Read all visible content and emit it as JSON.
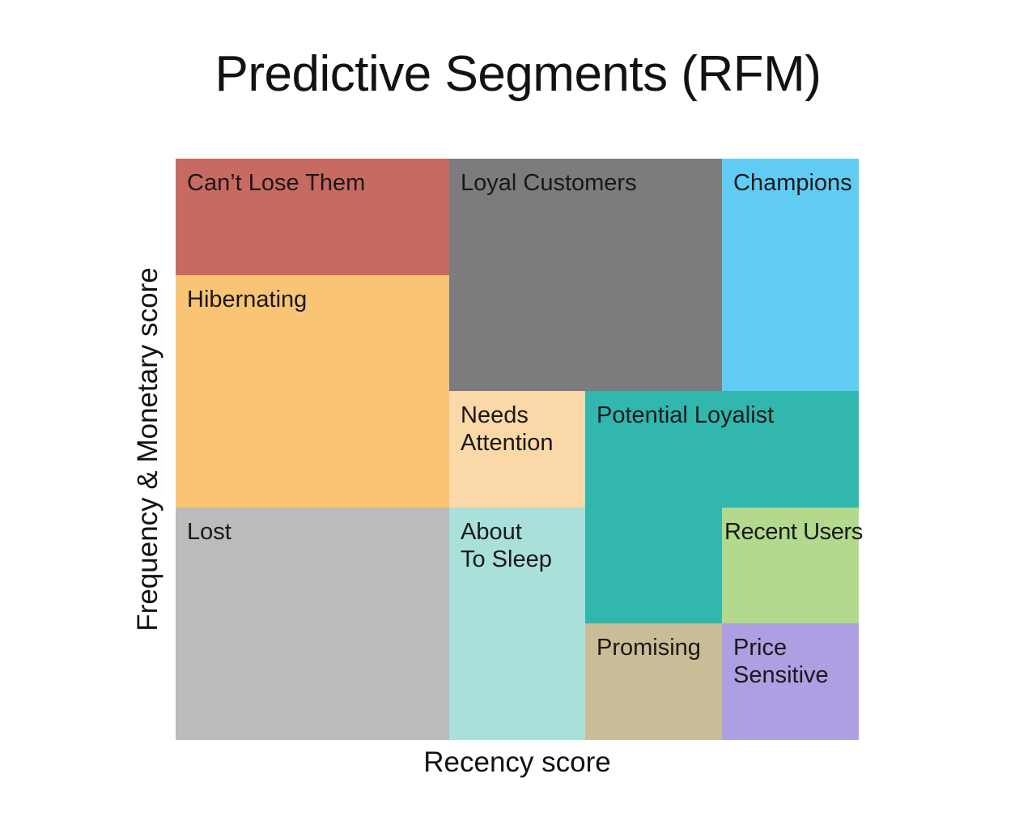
{
  "title": "Predictive Segments (RFM)",
  "x_axis_label": "Recency score",
  "y_axis_label": "Frequency & Monetary score",
  "background_color": "#ffffff",
  "text_color": "#161616",
  "chart_data": {
    "type": "treemap",
    "title": "Predictive Segments (RFM)",
    "xlabel": "Recency score",
    "ylabel": "Frequency & Monetary score",
    "grid": {
      "cols": 5,
      "rows": 5,
      "x_domain": "recency score 1-5, left to right",
      "y_domain": "frequency & monetary score 1-5, bottom to top"
    },
    "legend": "none",
    "segments": [
      {
        "label": "Can’t Lose Them",
        "display_label": "Can’t Lose Them",
        "color": "#C96A62",
        "recency": [
          1,
          2
        ],
        "fm": [
          5,
          5
        ],
        "cells": [
          [
            1,
            5
          ],
          [
            2,
            5
          ]
        ]
      },
      {
        "label": "Loyal Customers",
        "display_label": "Loyal Customers",
        "color": "#7C7C7E",
        "recency": [
          3,
          4
        ],
        "fm": [
          4,
          5
        ],
        "cells": [
          [
            3,
            5
          ],
          [
            4,
            5
          ],
          [
            3,
            4
          ],
          [
            4,
            4
          ]
        ]
      },
      {
        "label": "Champions",
        "display_label": "Champions",
        "color": "#61CCF3",
        "recency": [
          5,
          5
        ],
        "fm": [
          4,
          5
        ],
        "cells": [
          [
            5,
            5
          ],
          [
            5,
            4
          ]
        ]
      },
      {
        "label": "Hibernating",
        "display_label": "Hibernating",
        "color": "#FAC475",
        "recency": [
          1,
          2
        ],
        "fm": [
          3,
          4
        ],
        "cells": [
          [
            1,
            4
          ],
          [
            2,
            4
          ],
          [
            1,
            3
          ],
          [
            2,
            3
          ]
        ]
      },
      {
        "label": "Needs Attention",
        "display_label": "Needs\nAttention",
        "color": "#FBD8A7",
        "recency": [
          3,
          3
        ],
        "fm": [
          3,
          3
        ],
        "cells": [
          [
            3,
            3
          ]
        ]
      },
      {
        "label": "Potential Loyalist",
        "display_label": "Potential Loyalist",
        "color": "#31B7AE",
        "recency": [
          4,
          5
        ],
        "fm": [
          2,
          3
        ],
        "shape": "L",
        "cells": [
          [
            4,
            3
          ],
          [
            5,
            3
          ],
          [
            4,
            2
          ]
        ]
      },
      {
        "label": "Lost",
        "display_label": "Lost",
        "color": "#BBBABD",
        "recency": [
          1,
          2
        ],
        "fm": [
          1,
          2
        ],
        "cells": [
          [
            1,
            2
          ],
          [
            2,
            2
          ],
          [
            1,
            1
          ],
          [
            2,
            1
          ]
        ]
      },
      {
        "label": "About To Sleep",
        "display_label": "About\nTo Sleep",
        "color": "#A9E0DA",
        "recency": [
          3,
          3
        ],
        "fm": [
          1,
          2
        ],
        "cells": [
          [
            3,
            2
          ],
          [
            3,
            1
          ]
        ]
      },
      {
        "label": "Recent Users",
        "display_label": "Recent Users",
        "color": "#B3D98D",
        "recency": [
          5,
          5
        ],
        "fm": [
          2,
          2
        ],
        "cells": [
          [
            5,
            2
          ]
        ]
      },
      {
        "label": "Promising",
        "display_label": "Promising",
        "color": "#C9BC96",
        "recency": [
          4,
          4
        ],
        "fm": [
          1,
          1
        ],
        "cells": [
          [
            4,
            1
          ]
        ]
      },
      {
        "label": "Price Sensitive",
        "display_label": "Price\nSensitive",
        "color": "#AD9FE2",
        "recency": [
          5,
          5
        ],
        "fm": [
          1,
          1
        ],
        "cells": [
          [
            5,
            1
          ]
        ]
      }
    ]
  }
}
